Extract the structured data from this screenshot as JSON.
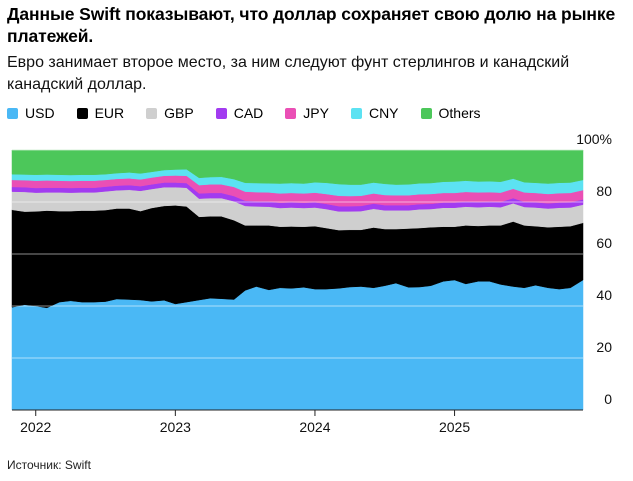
{
  "header": {
    "title": "Данные Swift показывают, что доллар сохраняет свою долю на рынке платежей.",
    "subtitle": "Евро занимает второе место, за ним следуют фунт стерлингов и канадский канадский доллар."
  },
  "footer": {
    "source": "Источник: Swift"
  },
  "colors": {
    "USD": "#4ab8f5",
    "EUR": "#000000",
    "GBP": "#cfcfcf",
    "CAD": "#a23bf0",
    "JPY": "#ea4fb5",
    "CNY": "#5ce2f2",
    "Others": "#4cc75a"
  },
  "chart_data": {
    "type": "area",
    "stacked": true,
    "title": "Данные Swift показывают, что доллар сохраняет свою долю на рынке платежей.",
    "subtitle": "Евро занимает второе место, за ним следуют фунт стерлингов и канадский канадский доллар.",
    "ylim": [
      0,
      100
    ],
    "yticks": [
      0,
      20,
      40,
      60,
      80,
      100
    ],
    "ytick_labels": [
      "0",
      "20",
      "40",
      "60",
      "80",
      "100%"
    ],
    "xticks": [
      2022,
      2023,
      2024,
      2025
    ],
    "xticks_labels": [
      "2022",
      "2023",
      "2024",
      "2025"
    ],
    "xlim": [
      2021.83,
      2025.92
    ],
    "legend_position": "top",
    "grid": true,
    "x": [
      2021.83,
      2021.92,
      2022.0,
      2022.08,
      2022.17,
      2022.25,
      2022.33,
      2022.42,
      2022.5,
      2022.58,
      2022.67,
      2022.75,
      2022.83,
      2022.92,
      2023.0,
      2023.08,
      2023.17,
      2023.25,
      2023.33,
      2023.42,
      2023.5,
      2023.58,
      2023.67,
      2023.75,
      2023.83,
      2023.92,
      2024.0,
      2024.08,
      2024.17,
      2024.25,
      2024.33,
      2024.42,
      2024.5,
      2024.58,
      2024.67,
      2024.75,
      2024.83,
      2024.92,
      2025.0,
      2025.08,
      2025.17,
      2025.25,
      2025.33,
      2025.42,
      2025.5,
      2025.58,
      2025.67,
      2025.75,
      2025.83,
      2025.92
    ],
    "series": [
      {
        "name": "USD",
        "values": [
          39.5,
          40.5,
          40.0,
          39.3,
          41.5,
          42.0,
          41.5,
          41.5,
          41.7,
          42.7,
          42.5,
          42.3,
          41.8,
          42.2,
          40.8,
          41.5,
          42.3,
          43.0,
          42.8,
          42.5,
          46.0,
          47.5,
          46.2,
          47.0,
          46.8,
          47.2,
          46.5,
          46.5,
          46.8,
          47.3,
          47.5,
          47.0,
          47.8,
          48.8,
          47.2,
          47.3,
          47.8,
          49.5,
          50.0,
          48.5,
          49.5,
          49.5,
          48.3,
          47.5,
          47.0,
          48.0,
          47.0,
          46.5,
          47.0,
          50.0
        ]
      },
      {
        "name": "EUR",
        "values": [
          37.5,
          35.8,
          36.4,
          37.4,
          35.0,
          34.5,
          35.2,
          35.2,
          35.2,
          34.8,
          35.0,
          34.2,
          35.9,
          36.3,
          37.9,
          36.8,
          32.0,
          31.5,
          31.7,
          30.5,
          25.0,
          23.5,
          24.8,
          23.5,
          23.8,
          23.3,
          24.2,
          23.5,
          22.4,
          22.0,
          21.8,
          23.2,
          21.8,
          20.8,
          22.6,
          22.7,
          22.5,
          21.0,
          20.5,
          22.5,
          21.3,
          21.5,
          22.7,
          25.0,
          24.0,
          22.7,
          23.3,
          24.0,
          23.7,
          22.0
        ]
      },
      {
        "name": "GBP",
        "values": [
          7.0,
          7.6,
          7.2,
          7.0,
          7.2,
          7.1,
          7.0,
          7.0,
          7.2,
          7.0,
          7.2,
          7.8,
          7.3,
          7.2,
          7.0,
          7.2,
          7.0,
          7.0,
          7.0,
          7.3,
          7.5,
          7.3,
          7.2,
          7.2,
          7.3,
          7.2,
          7.2,
          7.3,
          7.2,
          7.1,
          7.2,
          7.2,
          7.2,
          7.2,
          7.0,
          7.2,
          7.0,
          7.3,
          7.3,
          7.2,
          7.2,
          7.2,
          7.0,
          7.0,
          7.1,
          7.2,
          7.2,
          7.3,
          7.2,
          7.0
        ]
      },
      {
        "name": "CAD",
        "values": [
          1.8,
          1.8,
          1.8,
          1.8,
          1.8,
          1.8,
          1.8,
          1.8,
          1.8,
          1.8,
          1.8,
          1.8,
          1.8,
          1.8,
          1.8,
          1.8,
          2.0,
          2.0,
          2.0,
          2.0,
          2.0,
          2.0,
          2.0,
          2.0,
          2.0,
          2.0,
          2.0,
          2.0,
          2.0,
          2.0,
          2.0,
          2.0,
          2.0,
          2.0,
          2.0,
          2.0,
          2.0,
          2.0,
          2.0,
          2.0,
          2.0,
          2.0,
          2.0,
          2.0,
          2.0,
          2.0,
          2.0,
          2.0,
          2.0,
          2.0
        ]
      },
      {
        "name": "JPY",
        "values": [
          2.7,
          2.7,
          2.8,
          2.8,
          2.7,
          2.7,
          2.7,
          2.7,
          2.6,
          2.6,
          2.6,
          2.6,
          2.6,
          2.6,
          2.7,
          2.8,
          3.2,
          3.3,
          3.3,
          3.5,
          3.5,
          3.5,
          3.5,
          3.6,
          3.6,
          3.6,
          3.7,
          3.8,
          4.0,
          3.9,
          3.9,
          3.9,
          3.9,
          3.8,
          3.8,
          3.8,
          3.8,
          3.7,
          3.7,
          3.7,
          3.7,
          3.6,
          3.6,
          3.6,
          3.6,
          3.6,
          3.6,
          3.6,
          3.6,
          3.6
        ]
      },
      {
        "name": "CNY",
        "values": [
          2.2,
          2.2,
          2.3,
          2.3,
          2.3,
          2.3,
          2.3,
          2.3,
          2.2,
          2.2,
          2.3,
          2.3,
          2.2,
          2.2,
          2.3,
          2.5,
          2.8,
          2.8,
          2.9,
          3.0,
          3.4,
          3.5,
          3.5,
          3.8,
          3.8,
          3.8,
          4.0,
          4.3,
          4.5,
          4.4,
          4.3,
          4.2,
          4.3,
          4.1,
          4.2,
          4.2,
          4.2,
          4.3,
          4.4,
          4.3,
          4.2,
          4.2,
          4.2,
          3.9,
          3.9,
          3.9,
          4.0,
          4.0,
          4.0,
          3.9
        ]
      },
      {
        "name": "Others",
        "values": [
          9.3,
          9.4,
          9.5,
          9.4,
          9.5,
          9.6,
          9.5,
          9.5,
          9.3,
          8.9,
          8.6,
          9.0,
          8.4,
          7.7,
          7.5,
          7.4,
          10.7,
          10.4,
          10.3,
          11.2,
          12.6,
          12.7,
          12.8,
          12.9,
          12.7,
          12.9,
          12.4,
          12.6,
          13.1,
          13.3,
          13.3,
          12.5,
          13.0,
          13.3,
          13.2,
          12.8,
          12.7,
          12.2,
          12.1,
          11.8,
          12.1,
          12.0,
          12.2,
          11.0,
          12.4,
          12.6,
          12.9,
          12.6,
          12.5,
          11.5
        ]
      }
    ]
  }
}
